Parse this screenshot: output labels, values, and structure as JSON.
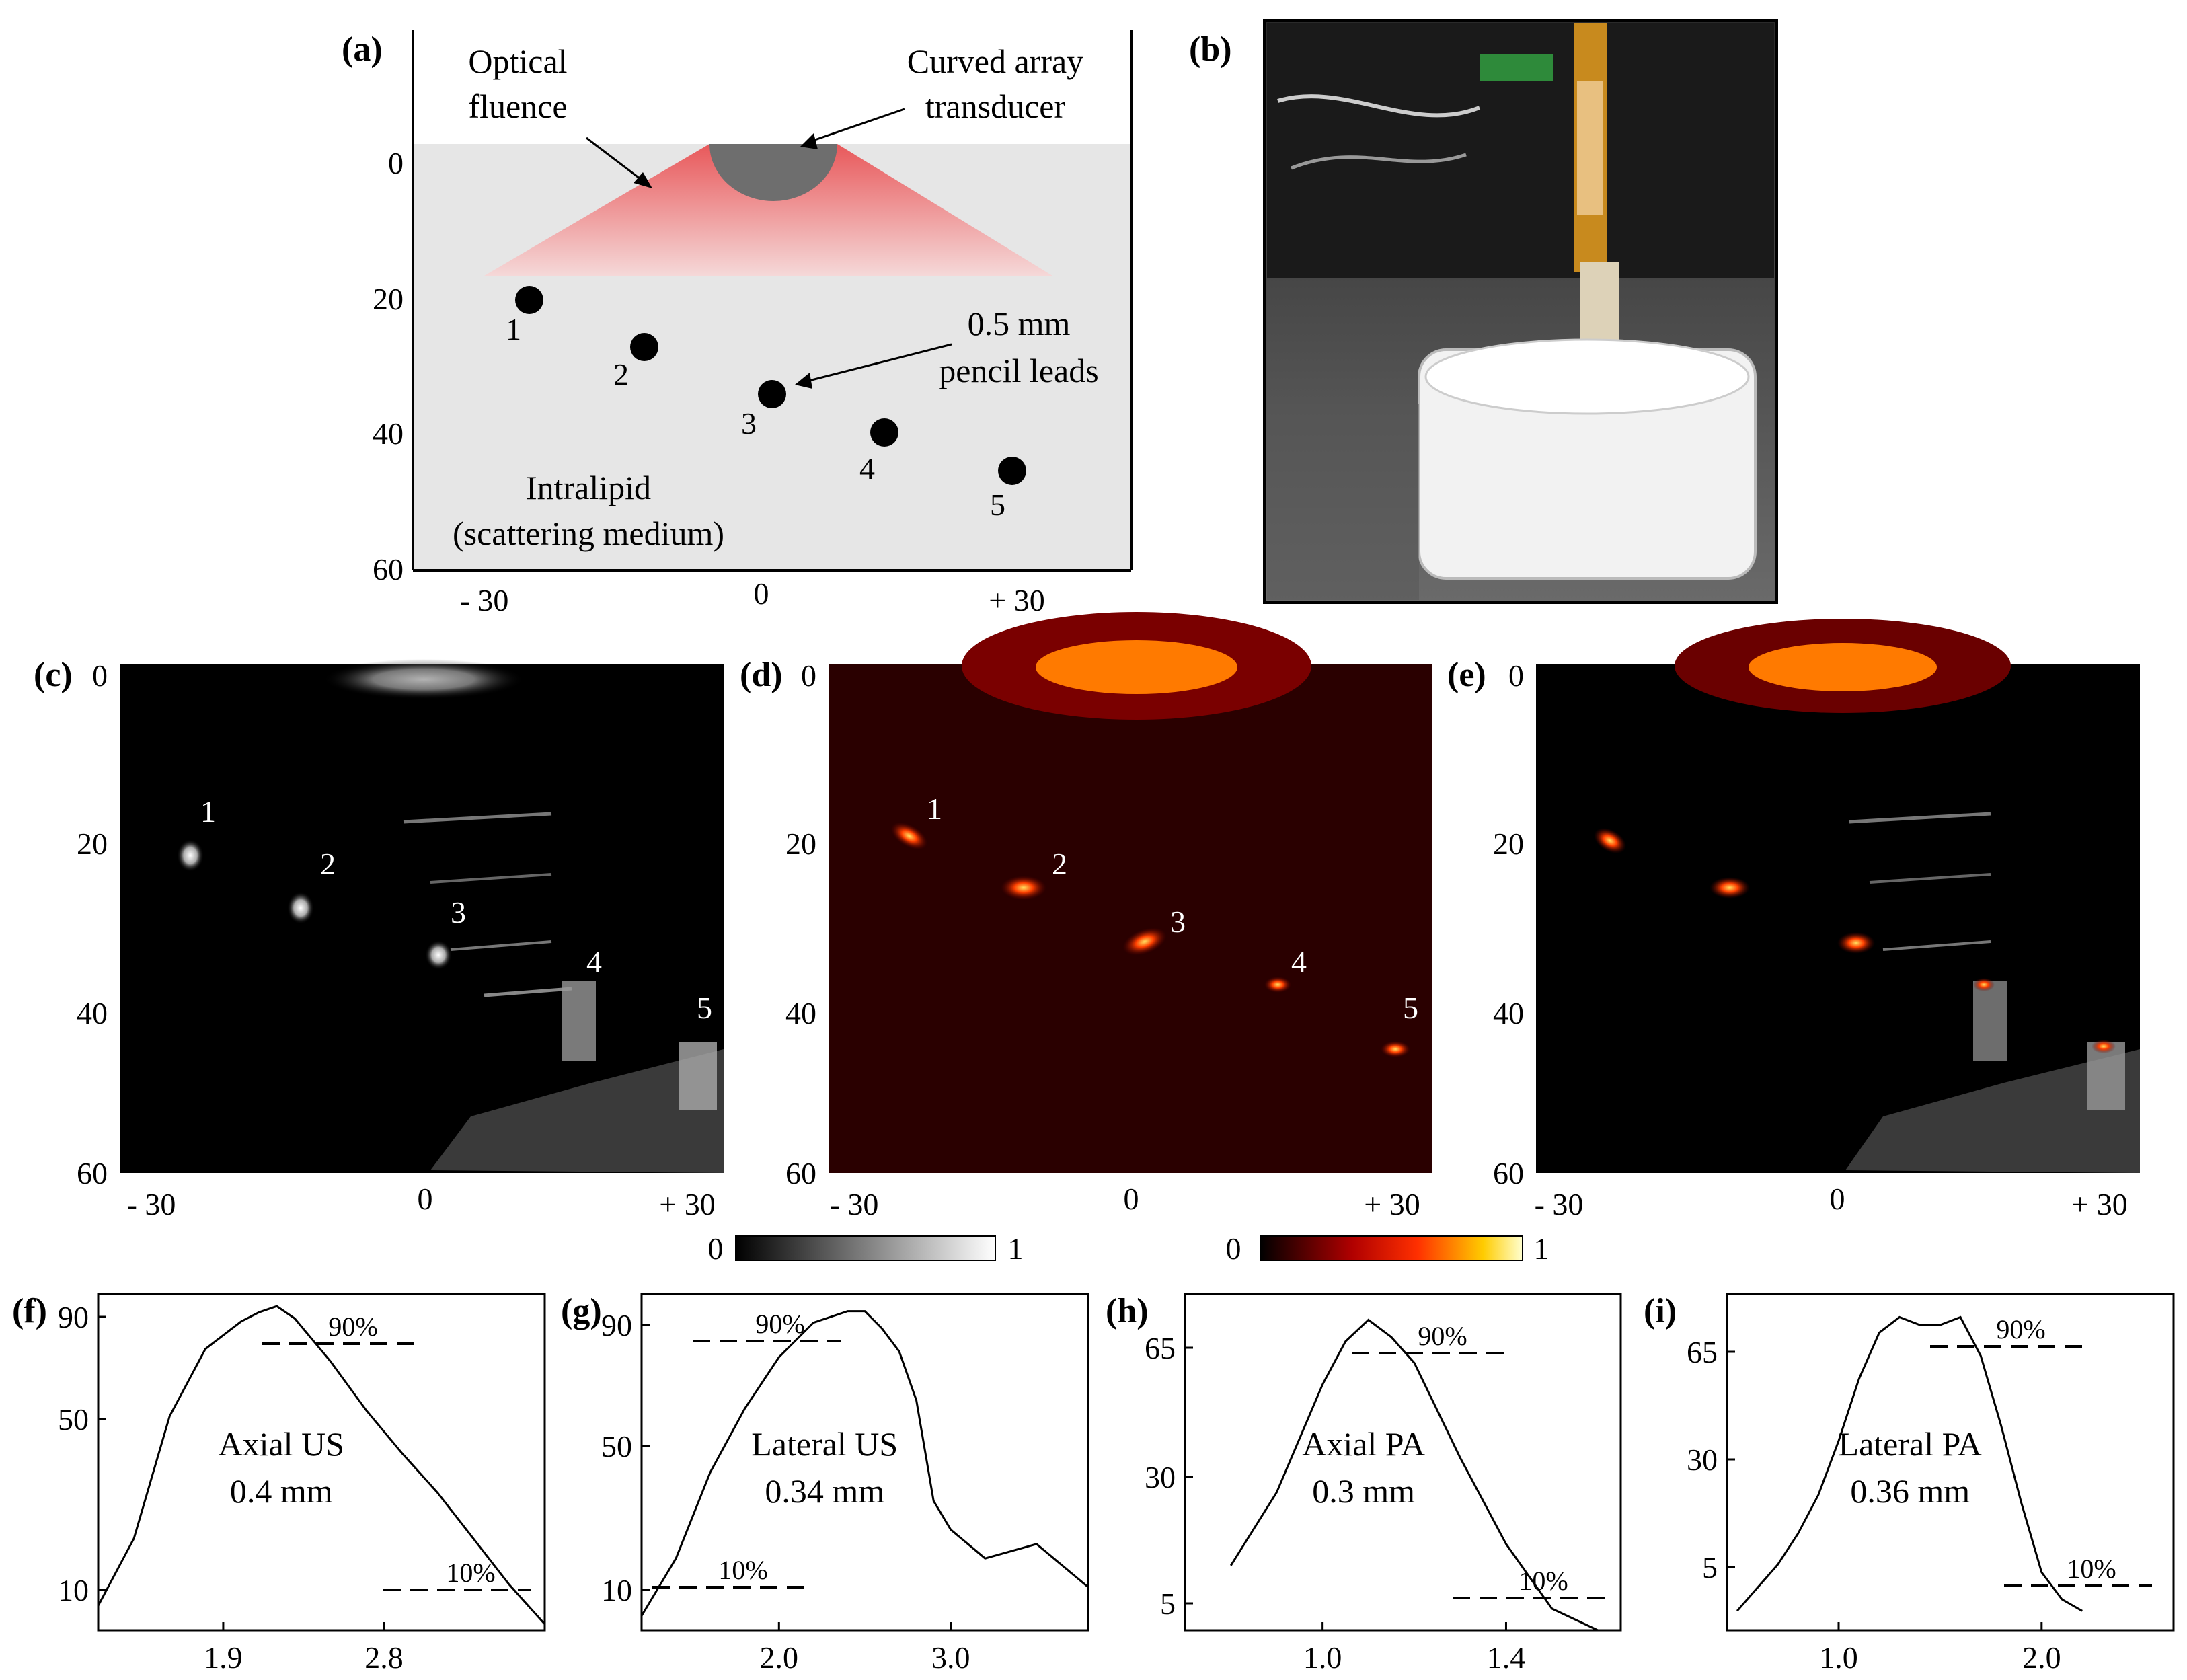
{
  "panels": {
    "a": "(a)",
    "b": "(b)",
    "c": "(c)",
    "d": "(d)",
    "e": "(e)",
    "f": "(f)",
    "g": "(g)",
    "h": "(h)",
    "i": "(i)"
  },
  "diagram_a": {
    "labels": {
      "optical_fluence_1": "Optical",
      "optical_fluence_2": "fluence",
      "transducer_1": "Curved array",
      "transducer_2": "transducer",
      "leads_1": "0.5 mm",
      "leads_2": "pencil leads",
      "medium_1": "Intralipid",
      "medium_2": "(scattering medium)"
    },
    "targets": [
      "1",
      "2",
      "3",
      "4",
      "5"
    ],
    "y_ticks": [
      "0",
      "20",
      "40",
      "60"
    ],
    "x_ticks": [
      "- 30",
      "0",
      "+ 30"
    ]
  },
  "images": {
    "y_ticks": [
      "0",
      "20",
      "40",
      "60"
    ],
    "x_ticks": [
      "- 30",
      "0",
      "+ 30"
    ],
    "target_labels": [
      "1",
      "2",
      "3",
      "4",
      "5"
    ]
  },
  "colorbars": {
    "gray": {
      "min": "0",
      "max": "1"
    },
    "hot": {
      "min": "0",
      "max": "1"
    }
  },
  "chart_data": [
    {
      "type": "line",
      "panel": "(f)",
      "annotation": [
        "Axial US",
        "0.4 mm"
      ],
      "yticks": [
        "10",
        "50",
        "90"
      ],
      "xticks": [
        "1.9",
        "2.8"
      ],
      "level_labels": [
        "90%",
        "10%"
      ],
      "x": [
        1.2,
        1.4,
        1.6,
        1.8,
        2.0,
        2.1,
        2.2,
        2.3,
        2.5,
        2.7,
        2.9,
        3.1,
        3.3,
        3.5,
        3.7
      ],
      "y": [
        8,
        30,
        70,
        92,
        101,
        104,
        106,
        102,
        88,
        72,
        58,
        45,
        30,
        15,
        2
      ],
      "ylim": [
        0,
        110
      ],
      "xlim": [
        1.2,
        3.7
      ]
    },
    {
      "type": "line",
      "panel": "(g)",
      "annotation": [
        "Lateral US",
        "0.34 mm"
      ],
      "yticks": [
        "10",
        "50",
        "90"
      ],
      "xticks": [
        "2.0",
        "3.0"
      ],
      "level_labels": [
        "90%",
        "10%"
      ],
      "x": [
        1.2,
        1.4,
        1.6,
        1.8,
        2.0,
        2.2,
        2.4,
        2.5,
        2.6,
        2.7,
        2.8,
        2.9,
        3.0,
        3.2,
        3.5,
        3.8
      ],
      "y": [
        0,
        20,
        50,
        72,
        90,
        102,
        106,
        106,
        100,
        92,
        75,
        40,
        30,
        20,
        25,
        10
      ],
      "ylim": [
        -5,
        112
      ],
      "xlim": [
        1.2,
        3.8
      ]
    },
    {
      "type": "line",
      "panel": "(h)",
      "annotation": [
        "Axial PA",
        "0.3 mm"
      ],
      "yticks": [
        "5",
        "30",
        "65"
      ],
      "xticks": [
        "1.0",
        "1.4"
      ],
      "level_labels": [
        "90%",
        "10%"
      ],
      "x": [
        0.8,
        0.9,
        1.0,
        1.05,
        1.1,
        1.15,
        1.2,
        1.3,
        1.4,
        1.5,
        1.6
      ],
      "y": [
        15,
        32,
        57,
        67,
        72,
        68,
        62,
        40,
        20,
        5,
        0
      ],
      "ylim": [
        0,
        78
      ],
      "xlim": [
        0.7,
        1.65
      ]
    },
    {
      "type": "line",
      "panel": "(i)",
      "annotation": [
        "Lateral PA",
        "0.36 mm"
      ],
      "yticks": [
        "5",
        "30",
        "65"
      ],
      "xticks": [
        "1.0",
        "2.0"
      ],
      "level_labels": [
        "90%",
        "10%"
      ],
      "x": [
        0.5,
        0.6,
        0.7,
        0.8,
        0.9,
        1.0,
        1.1,
        1.2,
        1.3,
        1.4,
        1.5,
        1.6,
        1.7,
        1.8,
        1.9,
        2.0,
        2.1,
        2.2
      ],
      "y": [
        0,
        6,
        12,
        20,
        30,
        44,
        60,
        72,
        76,
        74,
        74,
        76,
        66,
        48,
        28,
        10,
        3,
        0
      ],
      "ylim": [
        -5,
        82
      ],
      "xlim": [
        0.45,
        2.65
      ]
    }
  ]
}
